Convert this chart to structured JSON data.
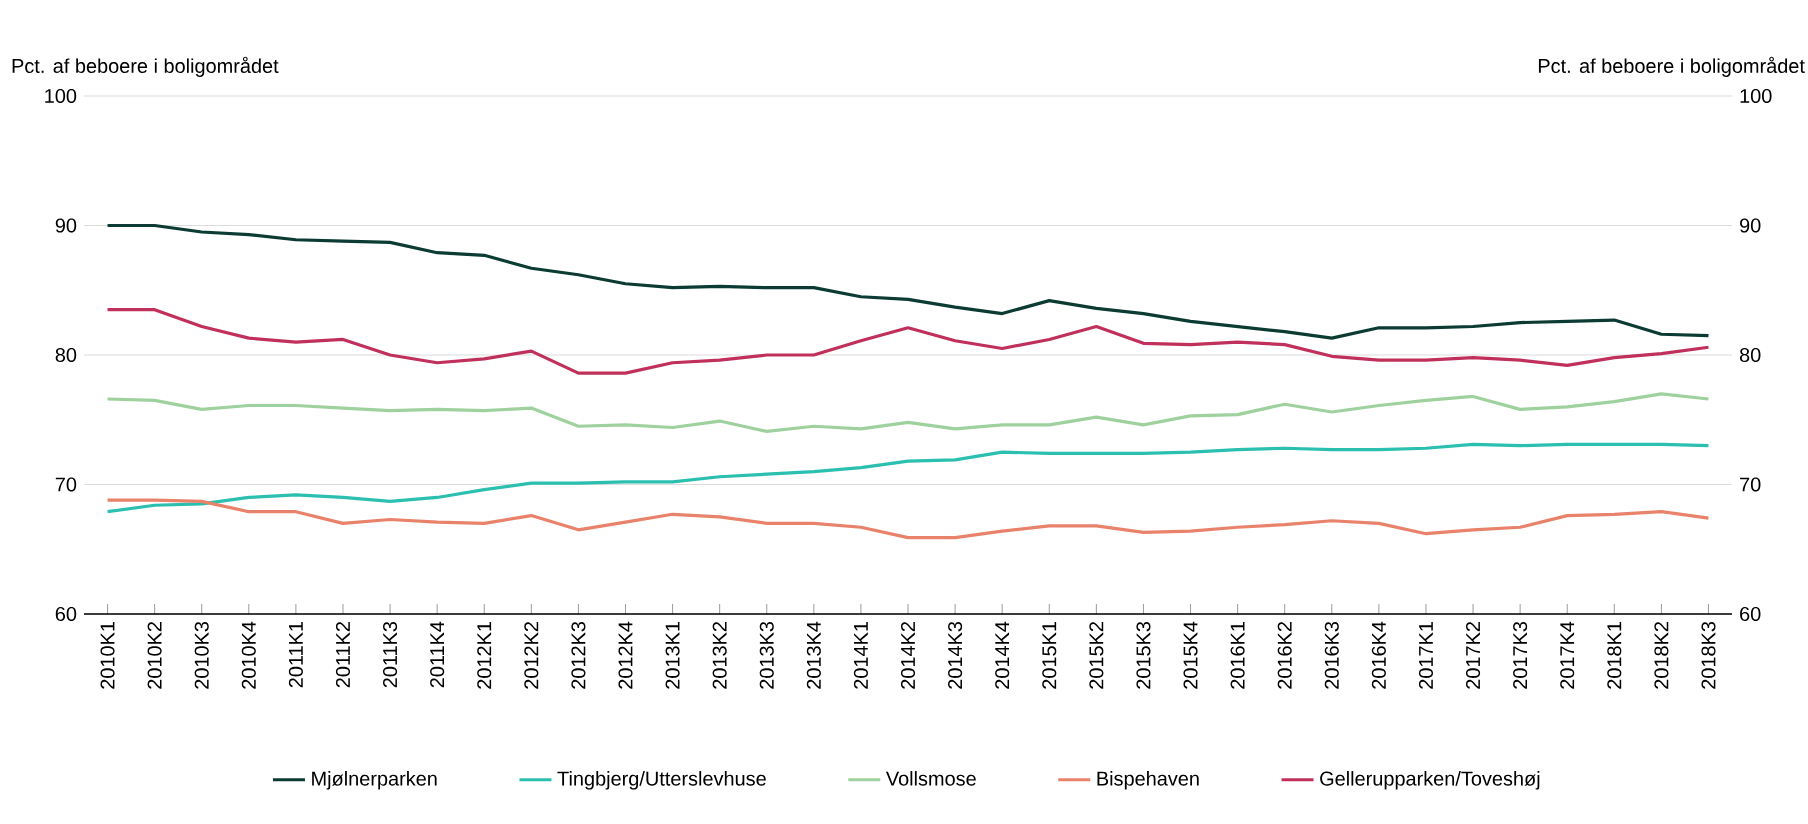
{
  "chart_data": {
    "type": "line",
    "ylabel": "Pct. af beboere i boligområdet",
    "y2label": "Pct. af beboere i boligområdet",
    "categories": [
      "2010K1",
      "2010K2",
      "2010K3",
      "2010K4",
      "2011K1",
      "2011K2",
      "2011K3",
      "2011K4",
      "2012K1",
      "2012K2",
      "2012K3",
      "2012K4",
      "2013K1",
      "2013K2",
      "2013K3",
      "2013K4",
      "2014K1",
      "2014K2",
      "2014K3",
      "2014K4",
      "2015K1",
      "2015K2",
      "2015K3",
      "2015K4",
      "2016K1",
      "2016K2",
      "2016K3",
      "2016K4",
      "2017K1",
      "2017K2",
      "2017K3",
      "2017K4",
      "2018K1",
      "2018K2",
      "2018K3"
    ],
    "series": [
      {
        "name": "Mjølnerparken",
        "color": "#0b3b32",
        "values": [
          90,
          90,
          89.5,
          89.3,
          88.9,
          88.8,
          88.7,
          87.9,
          87.7,
          86.7,
          86.2,
          85.5,
          85.2,
          85.3,
          85.2,
          85.2,
          84.5,
          84.3,
          83.7,
          83.2,
          84.2,
          83.6,
          83.2,
          82.6,
          82.2,
          81.8,
          81.3,
          82.1,
          82.1,
          82.2,
          82.5,
          82.6,
          82.7,
          81.6,
          81.5
        ]
      },
      {
        "name": "Tingbjerg/Utterslevhuse",
        "color": "#2bbfb0",
        "values": [
          67.9,
          68.4,
          68.5,
          69.0,
          69.2,
          69.0,
          68.7,
          69.0,
          69.6,
          70.1,
          70.1,
          70.2,
          70.2,
          70.6,
          70.8,
          71.0,
          71.3,
          71.8,
          71.9,
          72.5,
          72.4,
          72.4,
          72.4,
          72.5,
          72.7,
          72.8,
          72.7,
          72.7,
          72.8,
          73.1,
          73.0,
          73.1,
          73.1,
          73.1,
          73.0
        ]
      },
      {
        "name": "Vollsmose",
        "color": "#9fd19f",
        "values": [
          76.6,
          76.5,
          75.8,
          76.1,
          76.1,
          75.9,
          75.7,
          75.8,
          75.7,
          75.9,
          74.5,
          74.6,
          74.4,
          74.9,
          74.1,
          74.5,
          74.3,
          74.8,
          74.3,
          74.6,
          74.6,
          75.2,
          74.6,
          75.3,
          75.4,
          76.2,
          75.6,
          76.1,
          76.5,
          76.8,
          75.8,
          76.0,
          76.4,
          77.0,
          76.6
        ]
      },
      {
        "name": "Bispehaven",
        "color": "#e9826a",
        "values": [
          68.8,
          68.8,
          68.7,
          67.9,
          67.9,
          67.0,
          67.3,
          67.1,
          67.0,
          67.6,
          66.5,
          67.1,
          67.7,
          67.5,
          67.0,
          67.0,
          66.7,
          65.9,
          65.9,
          66.4,
          66.8,
          66.8,
          66.3,
          66.4,
          66.7,
          66.9,
          67.2,
          67.0,
          66.2,
          66.5,
          66.7,
          67.6,
          67.7,
          67.9,
          67.4
        ]
      },
      {
        "name": "Gellerupparken/Toveshøj",
        "color": "#c0305a",
        "values": [
          83.5,
          83.5,
          82.2,
          81.3,
          81.0,
          81.2,
          80.0,
          79.4,
          79.7,
          80.3,
          78.6,
          78.6,
          79.4,
          79.6,
          80.0,
          80.0,
          81.1,
          82.1,
          81.1,
          80.5,
          81.2,
          82.2,
          80.9,
          80.8,
          81.0,
          80.8,
          79.9,
          79.6,
          79.6,
          79.8,
          79.6,
          79.2,
          79.8,
          80.1,
          80.6
        ]
      }
    ],
    "ylim": [
      60,
      100
    ],
    "yticks": [
      60,
      70,
      80,
      90,
      100
    ],
    "y2lim": [
      60,
      100
    ],
    "y2ticks": [
      60,
      70,
      80,
      90,
      100
    ],
    "grid": "y",
    "legend": "bottom",
    "marker": "none",
    "line_style": "solid"
  }
}
